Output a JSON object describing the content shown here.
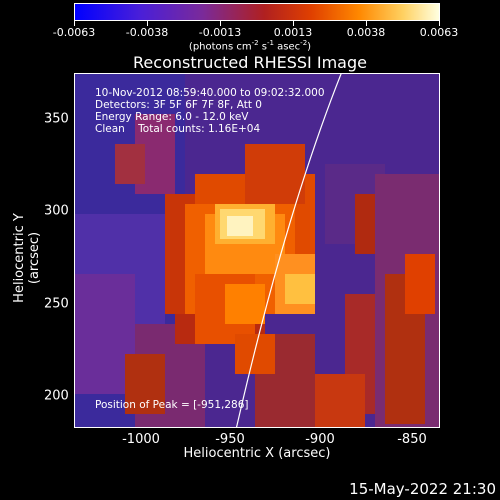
{
  "colorbar": {
    "ticks": [
      "-0.0063",
      "-0.0038",
      "-0.0013",
      "0.0013",
      "0.0038",
      "0.0063"
    ],
    "units_prefix": "(photons cm",
    "units_exp1": "-2",
    "units_mid": " s",
    "units_exp2": "-1",
    "units_mid2": " asec",
    "units_exp3": "-2",
    "units_suffix": ")"
  },
  "title": "Reconstructed RHESSI Image",
  "annotations": {
    "time_range": "10-Nov-2012 08:59:40.000 to 09:02:32.000",
    "detectors": "Detectors: 3F 5F 6F 7F 8F, Att 0",
    "energy": "Energy Range: 6.0 - 12.0 keV",
    "clean": "Clean    Total counts: 1.16E+04",
    "peak": "Position of Peak = [-951,286]"
  },
  "axes": {
    "xlabel": "Heliocentric X (arcsec)",
    "ylabel": "Heliocentric Y (arcsec)",
    "xticks": [
      "-1000",
      "-950",
      "-900",
      "-850"
    ],
    "yticks": [
      "350",
      "300",
      "250",
      "200"
    ]
  },
  "footer_date": "15-May-2022 21:30"
}
